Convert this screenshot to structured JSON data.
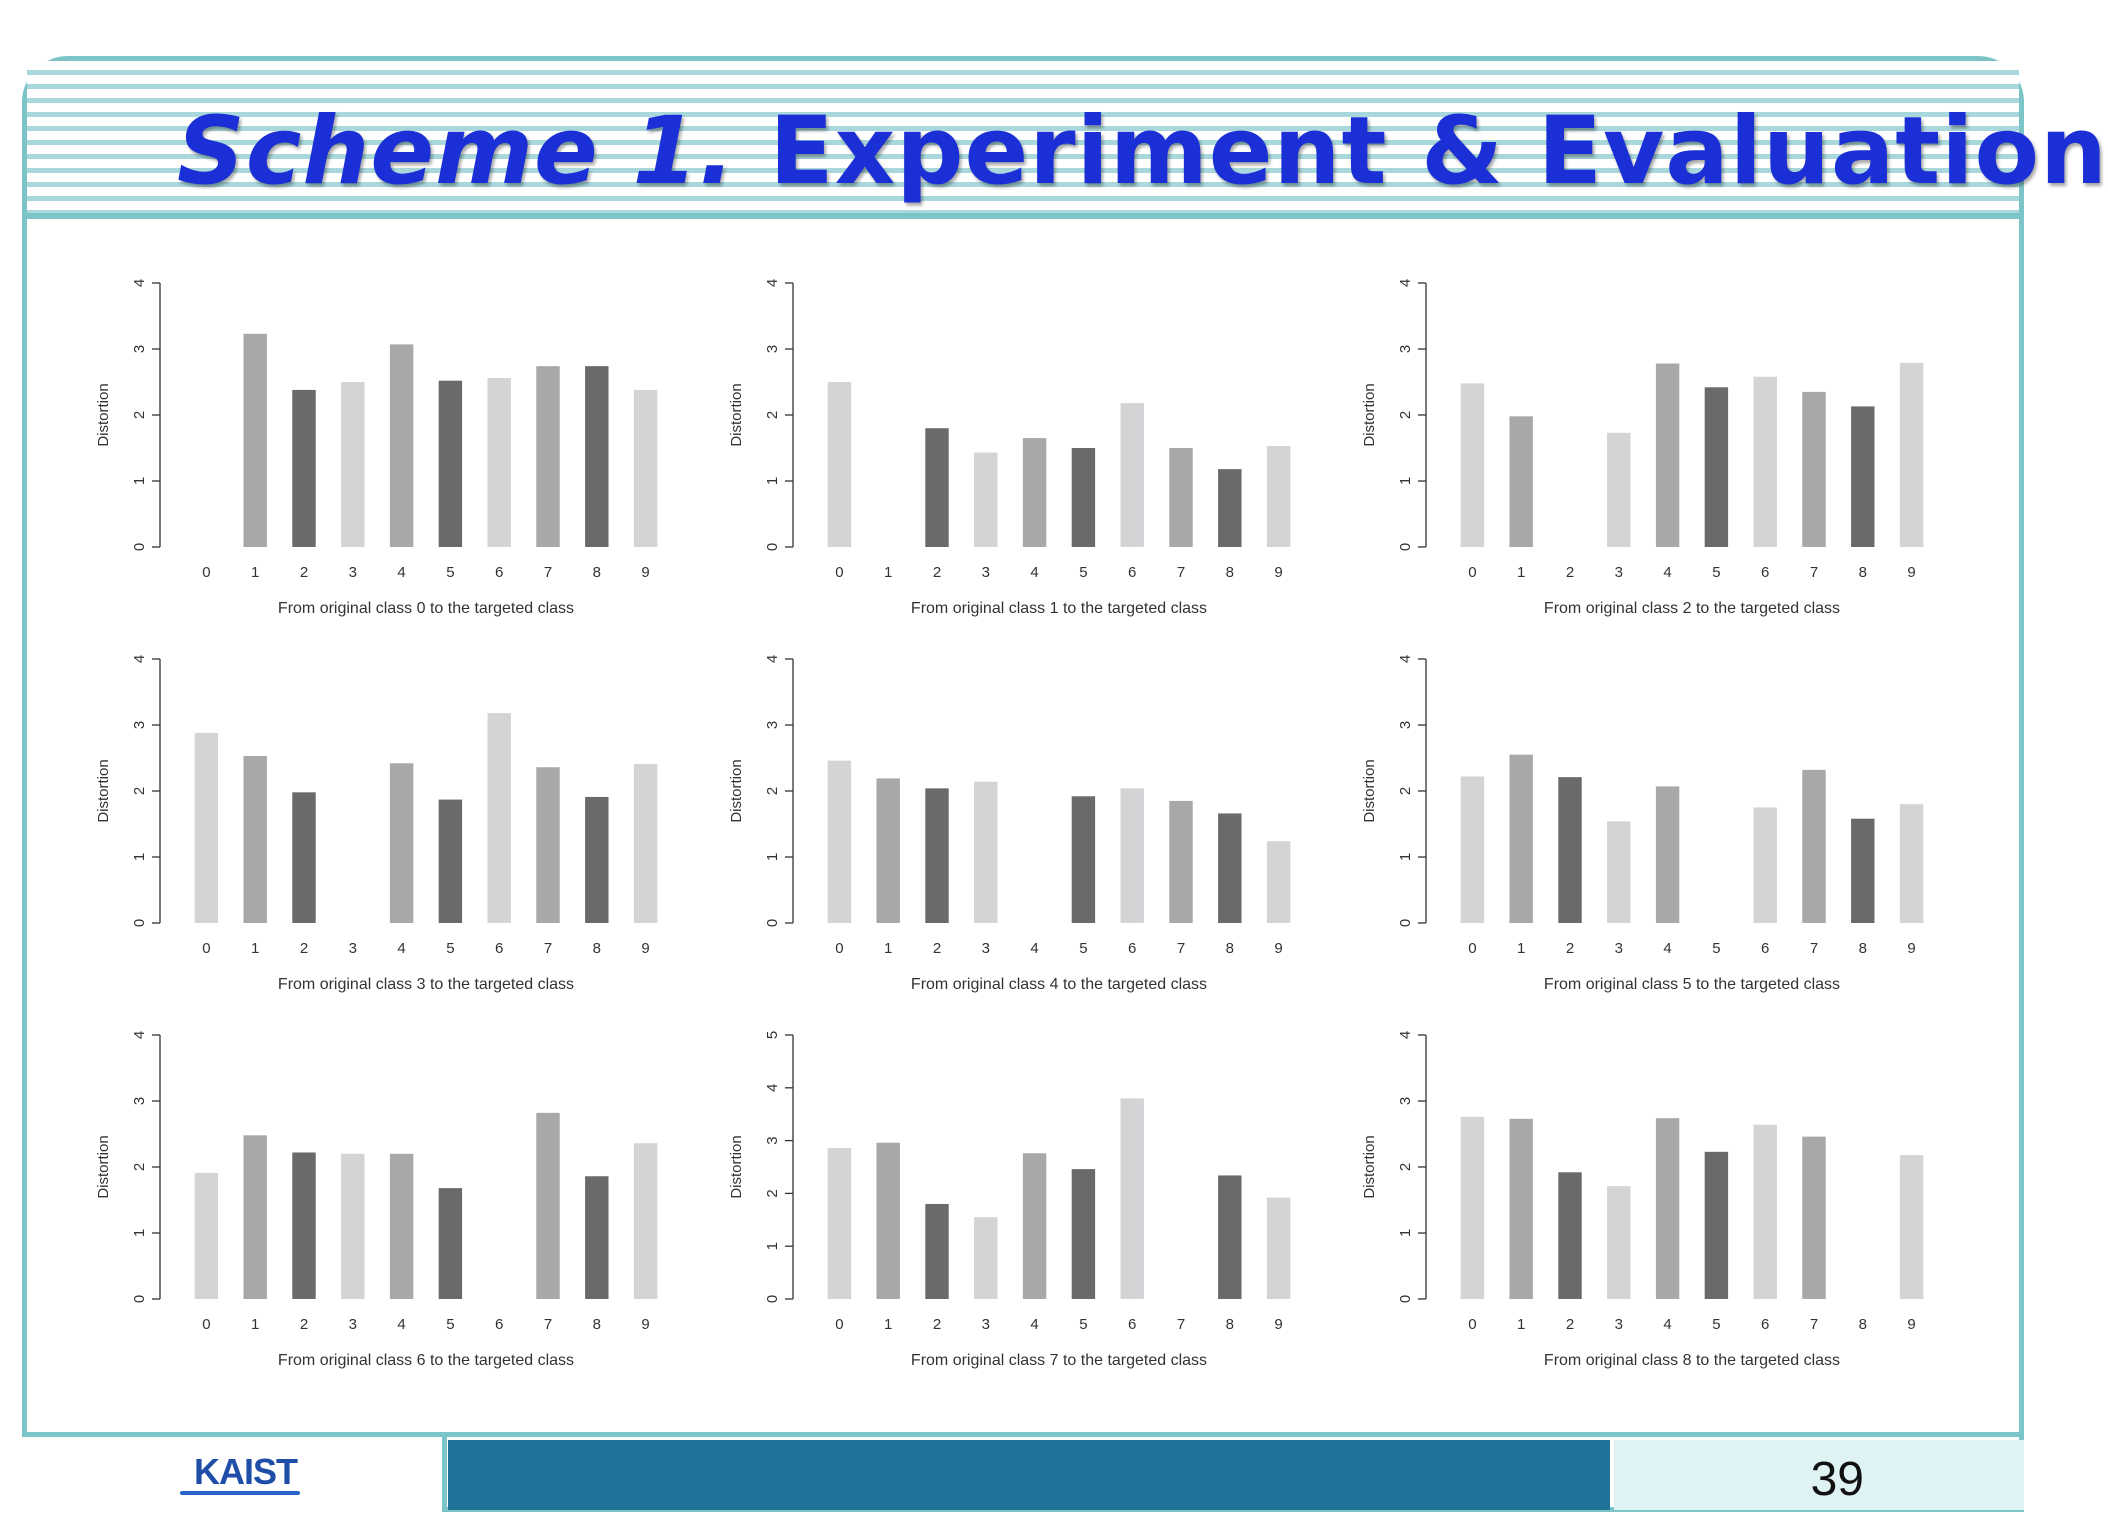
{
  "slide": {
    "title_italic": "Scheme 1.",
    "title_rest": " Experiment & Evaluation",
    "logo_text": "KAIST",
    "page_number": "39",
    "colors": {
      "title": "#1a2fd6",
      "frame": "#7cc4c8",
      "footer_bar": "#227399",
      "page_box": "#dff3f5"
    }
  },
  "bar_colors": [
    "#d4d3d6",
    "#a8a7aa",
    "#6a696c"
  ],
  "chart_data": [
    {
      "type": "bar",
      "ylabel": "Distortion",
      "xlabel": "From original class 0 to the targeted class",
      "categories": [
        "0",
        "1",
        "2",
        "3",
        "4",
        "5",
        "6",
        "7",
        "8",
        "9"
      ],
      "values": [
        0,
        3.23,
        2.38,
        2.5,
        3.07,
        2.52,
        2.56,
        2.74,
        2.74,
        2.38
      ],
      "ylim": [
        0,
        4
      ],
      "yticks": [
        "0",
        "1",
        "2",
        "3",
        "4"
      ],
      "grid": false
    },
    {
      "type": "bar",
      "ylabel": "Distortion",
      "xlabel": "From original class 1 to the targeted class",
      "categories": [
        "0",
        "1",
        "2",
        "3",
        "4",
        "5",
        "6",
        "7",
        "8",
        "9"
      ],
      "values": [
        2.5,
        0,
        1.8,
        1.43,
        1.65,
        1.5,
        2.18,
        1.5,
        1.18,
        1.53
      ],
      "ylim": [
        0,
        4
      ],
      "yticks": [
        "0",
        "1",
        "2",
        "3",
        "4"
      ],
      "grid": false
    },
    {
      "type": "bar",
      "ylabel": "Distortion",
      "xlabel": "From original class 2 to the targeted class",
      "categories": [
        "0",
        "1",
        "2",
        "3",
        "4",
        "5",
        "6",
        "7",
        "8",
        "9"
      ],
      "values": [
        2.48,
        1.98,
        0,
        1.73,
        2.78,
        2.42,
        2.58,
        2.35,
        2.13,
        2.79
      ],
      "ylim": [
        0,
        4
      ],
      "yticks": [
        "0",
        "1",
        "2",
        "3",
        "4"
      ],
      "grid": false
    },
    {
      "type": "bar",
      "ylabel": "Distortion",
      "xlabel": "From original class 3 to the targeted class",
      "categories": [
        "0",
        "1",
        "2",
        "3",
        "4",
        "5",
        "6",
        "7",
        "8",
        "9"
      ],
      "values": [
        2.88,
        2.53,
        1.98,
        0,
        2.42,
        1.87,
        3.18,
        2.36,
        1.91,
        2.41
      ],
      "ylim": [
        0,
        4
      ],
      "yticks": [
        "0",
        "1",
        "2",
        "3",
        "4"
      ],
      "grid": false
    },
    {
      "type": "bar",
      "ylabel": "Distortion",
      "xlabel": "From original class 4 to the targeted class",
      "categories": [
        "0",
        "1",
        "2",
        "3",
        "4",
        "5",
        "6",
        "7",
        "8",
        "9"
      ],
      "values": [
        2.46,
        2.19,
        2.04,
        2.14,
        0,
        1.92,
        2.04,
        1.85,
        1.66,
        1.24
      ],
      "ylim": [
        0,
        4
      ],
      "yticks": [
        "0",
        "1",
        "2",
        "3",
        "4"
      ],
      "grid": false
    },
    {
      "type": "bar",
      "ylabel": "Distortion",
      "xlabel": "From original class 5 to the targeted class",
      "categories": [
        "0",
        "1",
        "2",
        "3",
        "4",
        "5",
        "6",
        "7",
        "8",
        "9"
      ],
      "values": [
        2.22,
        2.55,
        2.21,
        1.54,
        2.07,
        0,
        1.75,
        2.32,
        1.58,
        1.8
      ],
      "ylim": [
        0,
        4
      ],
      "yticks": [
        "0",
        "1",
        "2",
        "3",
        "4"
      ],
      "grid": false
    },
    {
      "type": "bar",
      "ylabel": "Distortion",
      "xlabel": "From original class 6 to the targeted class",
      "categories": [
        "0",
        "1",
        "2",
        "3",
        "4",
        "5",
        "6",
        "7",
        "8",
        "9"
      ],
      "values": [
        1.91,
        2.48,
        2.22,
        2.2,
        2.2,
        1.68,
        0,
        2.82,
        1.86,
        2.36
      ],
      "ylim": [
        0,
        4
      ],
      "yticks": [
        "0",
        "1",
        "2",
        "3",
        "4"
      ],
      "grid": false
    },
    {
      "type": "bar",
      "ylabel": "Distortion",
      "xlabel": "From original class 7 to the targeted class",
      "categories": [
        "0",
        "1",
        "2",
        "3",
        "4",
        "5",
        "6",
        "7",
        "8",
        "9"
      ],
      "values": [
        2.86,
        2.96,
        1.8,
        1.55,
        2.76,
        2.46,
        3.8,
        0,
        2.34,
        1.92
      ],
      "ylim": [
        0,
        5
      ],
      "yticks": [
        "0",
        "1",
        "2",
        "3",
        "4",
        "5"
      ],
      "grid": false
    },
    {
      "type": "bar",
      "ylabel": "Distortion",
      "xlabel": "From original class 8 to the targeted class",
      "categories": [
        "0",
        "1",
        "2",
        "3",
        "4",
        "5",
        "6",
        "7",
        "8",
        "9"
      ],
      "values": [
        2.76,
        2.73,
        1.92,
        1.71,
        2.74,
        2.23,
        2.64,
        2.46,
        0,
        2.18
      ],
      "ylim": [
        0,
        4
      ],
      "yticks": [
        "0",
        "1",
        "2",
        "3",
        "4"
      ],
      "grid": false
    }
  ]
}
